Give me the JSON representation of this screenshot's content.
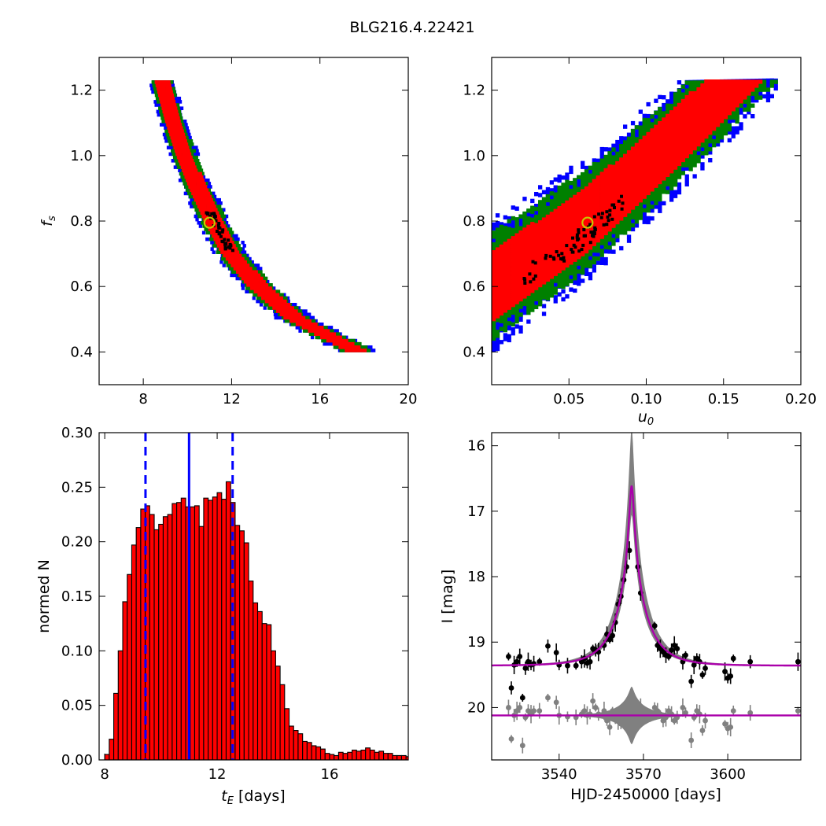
{
  "figure": {
    "title": "BLG216.4.22421"
  },
  "chart_data": [
    {
      "id": "fs_vs_tE",
      "type": "scatter",
      "description_type": "2d-density",
      "xlim": [
        6,
        20
      ],
      "ylim": [
        0.3,
        1.3
      ],
      "xticks": [
        8,
        12,
        16,
        20
      ],
      "yticks": [
        0.4,
        0.6,
        0.8,
        1.0,
        1.2
      ],
      "xlabel": "",
      "ylabel": "f_s",
      "levels": {
        "outer": "#0000ff",
        "middle": "#008000",
        "inner": "#ff0000",
        "peak": "#000000"
      },
      "ridge": {
        "fs": [
          1.22,
          1.1,
          1.0,
          0.9,
          0.8,
          0.7,
          0.6,
          0.5,
          0.4
        ],
        "tE": [
          8.8,
          9.3,
          9.8,
          10.4,
          11.1,
          11.9,
          13.1,
          14.8,
          17.6
        ]
      },
      "best_fit": {
        "tE": 11.0,
        "fs": 0.795,
        "marker_color": "#c8c800"
      }
    },
    {
      "id": "fs_vs_u0",
      "type": "scatter",
      "description_type": "2d-density",
      "xlim": [
        0.0,
        0.2
      ],
      "ylim": [
        0.3,
        1.3
      ],
      "xticks": [
        0.05,
        0.1,
        0.15,
        0.2
      ],
      "yticks": [
        0.4,
        0.6,
        0.8,
        1.0,
        1.2
      ],
      "xlabel": "u_0",
      "ylabel": "",
      "levels": {
        "outer": "#0000ff",
        "middle": "#008000",
        "inner": "#ff0000",
        "peak": "#000000"
      },
      "ridge": {
        "u0": [
          0.0,
          0.03,
          0.06,
          0.09,
          0.12,
          0.15
        ],
        "fs": [
          0.6,
          0.7,
          0.8,
          0.93,
          1.06,
          1.2
        ]
      },
      "best_fit": {
        "u0": 0.062,
        "fs": 0.795,
        "marker_color": "#c8c800"
      }
    },
    {
      "id": "tE_histogram",
      "type": "bar",
      "xlim": [
        7.8,
        18.8
      ],
      "ylim": [
        0.0,
        0.3
      ],
      "xticks": [
        8,
        12,
        16
      ],
      "yticks": [
        0.0,
        0.05,
        0.1,
        0.15,
        0.2,
        0.25,
        0.3
      ],
      "xlabel": "t_E [days]",
      "ylabel": "normed N",
      "bin_start": 8.0,
      "bin_width": 0.16,
      "values": [
        0.005,
        0.019,
        0.061,
        0.1,
        0.145,
        0.17,
        0.197,
        0.213,
        0.23,
        0.233,
        0.225,
        0.211,
        0.216,
        0.223,
        0.225,
        0.235,
        0.236,
        0.24,
        0.232,
        0.232,
        0.233,
        0.214,
        0.24,
        0.238,
        0.241,
        0.245,
        0.239,
        0.255,
        0.236,
        0.215,
        0.21,
        0.199,
        0.164,
        0.144,
        0.136,
        0.125,
        0.124,
        0.1,
        0.086,
        0.069,
        0.047,
        0.031,
        0.027,
        0.024,
        0.017,
        0.016,
        0.013,
        0.012,
        0.01,
        0.006,
        0.005,
        0.004,
        0.007,
        0.006,
        0.007,
        0.009,
        0.008,
        0.009,
        0.011,
        0.009,
        0.007,
        0.008,
        0.006,
        0.006,
        0.004,
        0.004,
        0.004,
        0.003,
        0.003,
        0.002
      ],
      "bar_color": "#ff0000",
      "vlines": [
        {
          "x": 9.45,
          "style": "dashed",
          "color": "#0000ff"
        },
        {
          "x": 11.0,
          "style": "solid",
          "color": "#0000ff"
        },
        {
          "x": 12.55,
          "style": "dashed",
          "color": "#0000ff"
        }
      ]
    },
    {
      "id": "light_curve",
      "type": "line",
      "xlim": [
        3516,
        3626
      ],
      "ylim": [
        20.8,
        15.8
      ],
      "xticks": [
        3540,
        3570,
        3600
      ],
      "yticks": [
        16,
        17,
        18,
        19,
        20
      ],
      "xlabel": "HJD-2450000 [days]",
      "ylabel": "I [mag]",
      "model": {
        "t0": 3565.8,
        "tE": 11.0,
        "u0": 0.062,
        "baseline": 19.36,
        "color": "#aa00aa"
      },
      "residual_baseline": 20.12,
      "series": [
        {
          "name": "",
          "color": "#000000",
          "x": [
            3522,
            3523,
            3524,
            3525,
            3526,
            3527,
            3528,
            3529,
            3530,
            3531,
            3533,
            3536,
            3539,
            3540,
            3543,
            3546,
            3548,
            3549,
            3550,
            3551,
            3552,
            3553,
            3554,
            3556,
            3557,
            3558,
            3559,
            3560,
            3561,
            3562,
            3563,
            3564,
            3565,
            3568,
            3569,
            3574,
            3575,
            3576,
            3577,
            3578,
            3579,
            3580,
            3581,
            3582,
            3584,
            3585,
            3587,
            3588,
            3589,
            3590,
            3591,
            3592,
            3599,
            3600,
            3601,
            3602,
            3608,
            3625
          ],
          "y": [
            19.22,
            19.7,
            19.35,
            19.3,
            19.22,
            19.85,
            19.4,
            19.3,
            19.35,
            19.33,
            19.3,
            19.06,
            19.16,
            19.35,
            19.36,
            19.36,
            19.3,
            19.25,
            19.32,
            19.3,
            19.1,
            19.12,
            19.15,
            19.05,
            18.88,
            18.96,
            18.9,
            18.7,
            18.42,
            18.3,
            18.05,
            17.85,
            17.6,
            17.85,
            18.25,
            18.75,
            19.05,
            19.1,
            19.15,
            19.2,
            19.22,
            19.12,
            19.05,
            19.1,
            19.3,
            19.2,
            19.6,
            19.35,
            19.25,
            19.3,
            19.5,
            19.4,
            19.45,
            19.55,
            19.52,
            19.25,
            19.3,
            19.3
          ]
        },
        {
          "name": "",
          "color": "#808080",
          "x": [
            3522,
            3523,
            3524,
            3525,
            3526,
            3527,
            3528,
            3529,
            3530,
            3531,
            3533,
            3536,
            3539,
            3540,
            3543,
            3546,
            3548,
            3549,
            3550,
            3551,
            3552,
            3553,
            3554,
            3556,
            3557,
            3558,
            3559,
            3560,
            3561,
            3562,
            3563,
            3564,
            3568,
            3569,
            3574,
            3575,
            3576,
            3577,
            3578,
            3579,
            3580,
            3581,
            3582,
            3584,
            3585,
            3587,
            3588,
            3589,
            3590,
            3591,
            3592,
            3599,
            3600,
            3601,
            3602,
            3608,
            3625
          ],
          "y": [
            20.0,
            20.48,
            20.12,
            20.05,
            20.0,
            20.58,
            20.15,
            20.05,
            20.1,
            20.05,
            20.05,
            19.85,
            19.92,
            20.12,
            20.14,
            20.15,
            20.1,
            20.05,
            20.12,
            20.1,
            19.9,
            20.0,
            20.1,
            20.05,
            20.2,
            20.3,
            20.05,
            20.15,
            20.2,
            20.25,
            20.05,
            20.1,
            20.1,
            20.0,
            20.0,
            20.05,
            20.1,
            20.2,
            20.15,
            20.05,
            20.1,
            20.2,
            20.15,
            20.0,
            20.08,
            20.5,
            20.15,
            20.05,
            20.1,
            20.35,
            20.2,
            20.25,
            20.32,
            20.3,
            20.05,
            20.08,
            20.05
          ]
        }
      ]
    }
  ]
}
